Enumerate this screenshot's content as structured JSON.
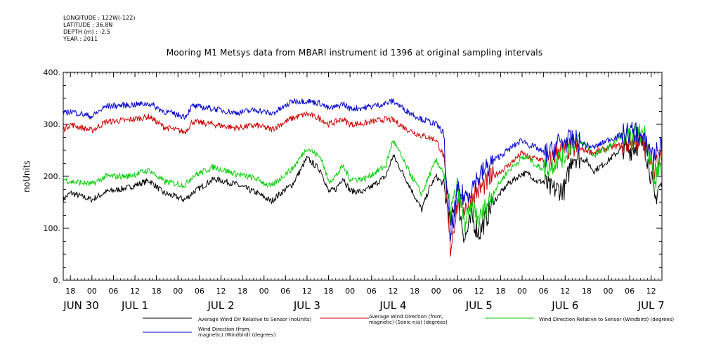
{
  "metadata": {
    "longitude": "LONGITUDE : 122W(-122)",
    "latitude": "LATITUDE : 36.8N",
    "depth": "DEPTH (m) : -2.5",
    "year": "YEAR : 2011"
  },
  "chart_data": {
    "type": "line",
    "title": "Mooring M1 Metsys data from MBARI instrument id 1396 at original sampling intervals",
    "ylabel": "noUnits",
    "xlabel": "",
    "ylim": [
      0,
      400
    ],
    "yticks": [
      0,
      100,
      200,
      300,
      400
    ],
    "ytick_labels": [
      "0.",
      "100.",
      "200.",
      "300.",
      "400."
    ],
    "xlim_hours": [
      -8,
      159
    ],
    "hour_ticks": [
      {
        "h": -6,
        "label": "18"
      },
      {
        "h": 0,
        "label": "00"
      },
      {
        "h": 6,
        "label": "06"
      },
      {
        "h": 12,
        "label": "12"
      },
      {
        "h": 18,
        "label": "18"
      },
      {
        "h": 24,
        "label": "00"
      },
      {
        "h": 30,
        "label": "06"
      },
      {
        "h": 36,
        "label": "12"
      },
      {
        "h": 42,
        "label": "18"
      },
      {
        "h": 48,
        "label": "00"
      },
      {
        "h": 54,
        "label": "06"
      },
      {
        "h": 60,
        "label": "12"
      },
      {
        "h": 66,
        "label": "18"
      },
      {
        "h": 72,
        "label": "00"
      },
      {
        "h": 78,
        "label": "06"
      },
      {
        "h": 84,
        "label": "12"
      },
      {
        "h": 90,
        "label": "18"
      },
      {
        "h": 96,
        "label": "00"
      },
      {
        "h": 102,
        "label": "06"
      },
      {
        "h": 108,
        "label": "12"
      },
      {
        "h": 114,
        "label": "18"
      },
      {
        "h": 120,
        "label": "00"
      },
      {
        "h": 126,
        "label": "06"
      },
      {
        "h": 132,
        "label": "12"
      },
      {
        "h": 138,
        "label": "18"
      },
      {
        "h": 144,
        "label": "00"
      },
      {
        "h": 150,
        "label": "06"
      },
      {
        "h": 156,
        "label": "12"
      }
    ],
    "date_labels": [
      {
        "h": -3,
        "label": "JUN 30"
      },
      {
        "h": 12,
        "label": "JUL  1"
      },
      {
        "h": 36,
        "label": "JUL  2"
      },
      {
        "h": 60,
        "label": "JUL  3"
      },
      {
        "h": 84,
        "label": "JUL  4"
      },
      {
        "h": 108,
        "label": "JUL  5"
      },
      {
        "h": 132,
        "label": "JUL  6"
      },
      {
        "h": 156,
        "label": "JUL  7"
      }
    ],
    "series": [
      {
        "name": "Average Wind Dir Relative to Sensor (noUnits)",
        "color": "#000000",
        "x": [
          -8,
          -6,
          0,
          4,
          10,
          16,
          20,
          26,
          28,
          34,
          40,
          46,
          50,
          54,
          56,
          60,
          64,
          66,
          68,
          70,
          72,
          76,
          82,
          84,
          88,
          92,
          94,
          96,
          98,
          100,
          102,
          104,
          106,
          108,
          112,
          116,
          120,
          122,
          124,
          126,
          128,
          130,
          132,
          134,
          138,
          140,
          144,
          148,
          150,
          152,
          154,
          156,
          157,
          158
        ],
        "y": [
          155,
          168,
          155,
          170,
          178,
          192,
          168,
          155,
          168,
          195,
          185,
          168,
          152,
          175,
          185,
          235,
          210,
          170,
          175,
          198,
          172,
          170,
          200,
          240,
          190,
          135,
          175,
          200,
          185,
          110,
          155,
          80,
          120,
          90,
          150,
          185,
          205,
          205,
          190,
          190,
          175,
          175,
          175,
          240,
          230,
          210,
          230,
          255,
          250,
          260,
          265,
          200,
          150,
          180
        ]
      },
      {
        "name": "Average Wind Direction (from, magnetic) (Sonic-n/a) (degrees)",
        "color": "#cc0000",
        "x": [
          -8,
          -6,
          0,
          4,
          10,
          16,
          20,
          26,
          28,
          34,
          40,
          46,
          50,
          54,
          56,
          60,
          64,
          66,
          68,
          70,
          72,
          76,
          82,
          84,
          88,
          92,
          94,
          96,
          98,
          100,
          102,
          104,
          106,
          108,
          112,
          116,
          120,
          122,
          124,
          126,
          128,
          130,
          132,
          134,
          138,
          140,
          144,
          148,
          150,
          152,
          154,
          156,
          157,
          158
        ],
        "y": [
          290,
          300,
          288,
          305,
          308,
          315,
          295,
          285,
          305,
          300,
          293,
          298,
          290,
          305,
          312,
          320,
          310,
          300,
          305,
          310,
          300,
          302,
          310,
          308,
          290,
          278,
          275,
          270,
          240,
          60,
          150,
          140,
          160,
          175,
          200,
          220,
          245,
          235,
          235,
          230,
          230,
          250,
          250,
          255,
          250,
          245,
          255,
          260,
          265,
          270,
          255,
          240,
          215,
          230
        ]
      },
      {
        "name": "Wind Direction Relative to Sensor (Windbird) (degrees)",
        "color": "#00cc00",
        "x": [
          -8,
          -6,
          0,
          4,
          10,
          16,
          20,
          26,
          28,
          34,
          40,
          46,
          50,
          54,
          56,
          60,
          64,
          66,
          68,
          70,
          72,
          76,
          82,
          84,
          88,
          92,
          94,
          96,
          98,
          100,
          102,
          104,
          106,
          108,
          112,
          116,
          120,
          122,
          124,
          126,
          128,
          130,
          132,
          134,
          138,
          140,
          144,
          148,
          150,
          152,
          154,
          156,
          157,
          158
        ],
        "y": [
          195,
          190,
          185,
          200,
          200,
          212,
          190,
          183,
          200,
          218,
          205,
          195,
          180,
          205,
          215,
          255,
          235,
          190,
          200,
          220,
          195,
          195,
          220,
          270,
          215,
          165,
          200,
          230,
          210,
          130,
          180,
          105,
          140,
          115,
          170,
          210,
          235,
          235,
          220,
          215,
          220,
          235,
          240,
          270,
          260,
          240,
          255,
          280,
          270,
          280,
          285,
          230,
          180,
          220
        ]
      },
      {
        "name": "Wind Direction (from, magnetic) (Windbird) (degrees)",
        "color": "#0000cc",
        "x": [
          -8,
          -6,
          0,
          4,
          10,
          16,
          20,
          26,
          28,
          34,
          40,
          46,
          50,
          54,
          56,
          60,
          64,
          66,
          68,
          70,
          72,
          76,
          82,
          84,
          88,
          92,
          94,
          96,
          98,
          100,
          102,
          104,
          106,
          108,
          112,
          116,
          120,
          122,
          124,
          126,
          128,
          130,
          132,
          134,
          138,
          140,
          144,
          148,
          150,
          152,
          154,
          156,
          157,
          158
        ],
        "y": [
          320,
          325,
          315,
          335,
          337,
          340,
          325,
          315,
          335,
          330,
          322,
          328,
          320,
          335,
          345,
          345,
          340,
          330,
          333,
          340,
          330,
          332,
          340,
          345,
          325,
          310,
          305,
          300,
          285,
          80,
          170,
          160,
          180,
          200,
          230,
          250,
          270,
          260,
          255,
          245,
          245,
          265,
          265,
          270,
          260,
          255,
          270,
          280,
          285,
          285,
          265,
          250,
          240,
          255
        ]
      }
    ],
    "legend": [
      {
        "label_lines": [
          "Average Wind Dir Relative to Sensor (noUnits)"
        ],
        "color": "#000000"
      },
      {
        "label_lines": [
          "Average Wind Direction (from,",
          "magnetic) (Sonic-n/a) (degrees)"
        ],
        "color": "#cc0000"
      },
      {
        "label_lines": [
          "Wind Direction Relative to Sensor (Windbird) (degrees)"
        ],
        "color": "#00cc00"
      },
      {
        "label_lines": [
          "Wind Direction (from,",
          "magnetic) (Windbird) (degrees)"
        ],
        "color": "#0000cc"
      }
    ]
  }
}
